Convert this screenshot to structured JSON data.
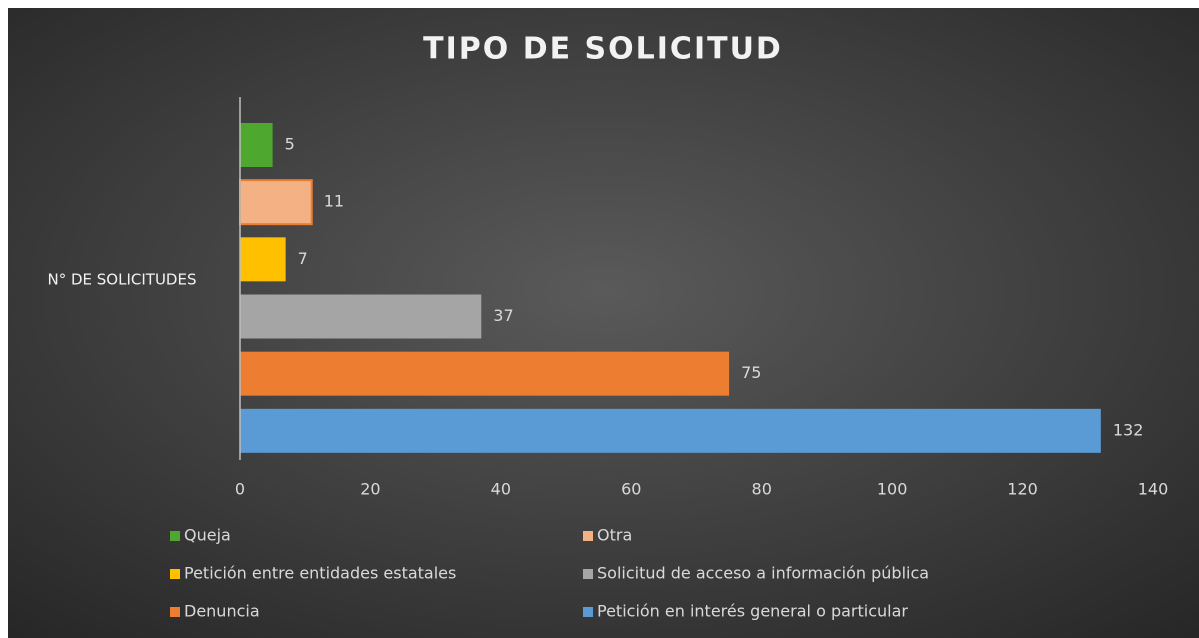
{
  "chart_data": {
    "type": "bar",
    "orientation": "horizontal",
    "title": "TIPO DE SOLICITUD",
    "categories": [
      "N° DE SOLICITUDES"
    ],
    "series": [
      {
        "name": "Queja",
        "color": "#4ea72e",
        "values": [
          5
        ]
      },
      {
        "name": "Otra",
        "color": "#f4b183",
        "values": [
          11
        ]
      },
      {
        "name": "Petición entre entidades estatales",
        "color": "#ffc000",
        "values": [
          7
        ]
      },
      {
        "name": "Solicitud de acceso a información pública",
        "color": "#a5a5a5",
        "values": [
          37
        ]
      },
      {
        "name": "Denuncia",
        "color": "#ed7d31",
        "values": [
          75
        ]
      },
      {
        "name": "Petición en interés general o particular",
        "color": "#5b9bd5",
        "values": [
          132
        ]
      }
    ],
    "xlim": [
      0,
      140
    ],
    "xticks": [
      0,
      20,
      40,
      60,
      80,
      100,
      120,
      140
    ],
    "grid": false,
    "legend": "bottom"
  }
}
